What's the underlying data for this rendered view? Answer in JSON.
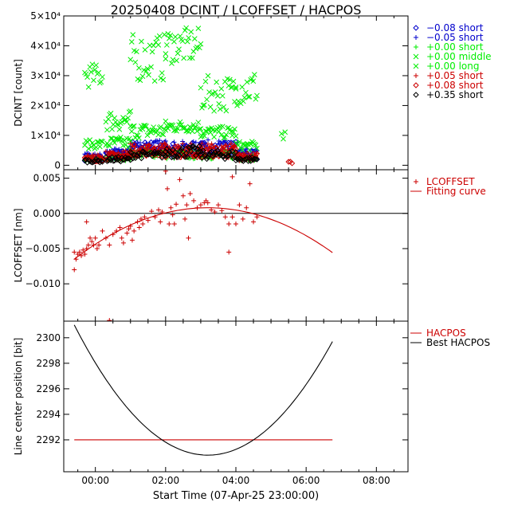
{
  "title": "20250408 DCINT / LCOFFSET / HACPOS",
  "x_axis": {
    "label": "Start Time (07-Apr-25 23:00:00)",
    "range": [
      -0.9,
      8.9
    ],
    "ticks": [
      {
        "v": 0,
        "label": "00:00"
      },
      {
        "v": 2,
        "label": "02:00"
      },
      {
        "v": 4,
        "label": "04:00"
      },
      {
        "v": 6,
        "label": "06:00"
      },
      {
        "v": 8,
        "label": "08:00"
      }
    ]
  },
  "chart_data": [
    {
      "type": "scatter",
      "ylabel": "DCINT [count]",
      "ylim": [
        -1500,
        50000
      ],
      "yticks": [
        {
          "v": 0,
          "label": "0"
        },
        {
          "v": 10000,
          "label": "1×10⁴"
        },
        {
          "v": 20000,
          "label": "2×10⁴"
        },
        {
          "v": 30000,
          "label": "3×10⁴"
        },
        {
          "v": 40000,
          "label": "4×10⁴"
        },
        {
          "v": 50000,
          "label": "5×10⁴"
        }
      ],
      "legend_placement": "right",
      "series": [
        {
          "name": "−0.08 short",
          "marker": "diamond",
          "color": "#0000cc",
          "segments": [
            [
              -0.3,
              0.2,
              2500,
              1000
            ],
            [
              0.3,
              1.0,
              3500,
              1500
            ],
            [
              1.0,
              2.0,
              6000,
              2000
            ],
            [
              2.0,
              3.0,
              5000,
              2500
            ],
            [
              3.0,
              4.0,
              5500,
              2500
            ],
            [
              4.0,
              4.6,
              3500,
              1500
            ]
          ]
        },
        {
          "name": "−0.05 short",
          "marker": "plus",
          "color": "#0000cc",
          "segments": [
            [
              -0.3,
              0.2,
              3000,
              1000
            ],
            [
              0.3,
              1.0,
              4000,
              1500
            ],
            [
              1.0,
              2.0,
              6500,
              2000
            ],
            [
              2.0,
              3.0,
              5500,
              2500
            ],
            [
              3.0,
              4.0,
              6000,
              2500
            ],
            [
              4.0,
              4.6,
              4000,
              1500
            ]
          ]
        },
        {
          "name": "+0.00 short",
          "marker": "plus",
          "color": "#00ee00",
          "segments": [
            [
              -0.3,
              0.2,
              2000,
              800
            ],
            [
              0.3,
              1.0,
              2500,
              1000
            ],
            [
              1.0,
              2.0,
              4000,
              1500
            ],
            [
              2.0,
              3.0,
              3500,
              1500
            ],
            [
              3.0,
              4.0,
              3500,
              1500
            ],
            [
              4.0,
              4.6,
              2500,
              1000
            ]
          ]
        },
        {
          "name": "+0.00 middle",
          "marker": "x",
          "color": "#00ee00",
          "segments": [
            [
              -0.3,
              0.2,
              7000,
              1500
            ],
            [
              0.3,
              1.0,
              7500,
              2000
            ],
            [
              1.0,
              2.0,
              11500,
              2500
            ],
            [
              2.0,
              3.0,
              13000,
              2000
            ],
            [
              3.0,
              4.0,
              11000,
              2000
            ],
            [
              4.0,
              4.6,
              6500,
              1500
            ]
          ]
        },
        {
          "name": "+0.00 long",
          "marker": "x",
          "color": "#00ee00",
          "segments": [
            [
              -0.3,
              0.2,
              30000,
              4000
            ],
            [
              0.3,
              1.0,
              15000,
              3500
            ],
            [
              1.0,
              2.0,
              36000,
              8000
            ],
            [
              2.0,
              3.0,
              40000,
              6000
            ],
            [
              3.0,
              4.0,
              24000,
              6000
            ],
            [
              4.0,
              4.6,
              26000,
              6000
            ],
            [
              5.3,
              5.4,
              10000,
              6000
            ]
          ]
        },
        {
          "name": "+0.05 short",
          "marker": "plus",
          "color": "#cc0000",
          "segments": [
            [
              -0.3,
              0.2,
              2500,
              1000
            ],
            [
              0.3,
              1.0,
              3500,
              1500
            ],
            [
              1.0,
              2.0,
              5500,
              2000
            ],
            [
              2.0,
              3.0,
              5000,
              2500
            ],
            [
              3.0,
              4.0,
              5000,
              2500
            ],
            [
              4.0,
              4.6,
              3000,
              1500
            ]
          ]
        },
        {
          "name": "+0.08 short",
          "marker": "diamond",
          "color": "#cc0000",
          "segments": [
            [
              -0.3,
              0.2,
              2000,
              800
            ],
            [
              0.3,
              1.0,
              3000,
              1200
            ],
            [
              1.0,
              2.0,
              5000,
              2000
            ],
            [
              2.0,
              3.0,
              4500,
              2000
            ],
            [
              3.0,
              4.0,
              4500,
              2000
            ],
            [
              4.0,
              4.6,
              3000,
              1200
            ],
            [
              5.5,
              5.6,
              1000,
              400
            ]
          ]
        },
        {
          "name": "+0.35 short",
          "marker": "diamond",
          "color": "#000000",
          "segments": [
            [
              -0.3,
              0.2,
              1500,
              600
            ],
            [
              0.3,
              1.0,
              2000,
              800
            ],
            [
              1.0,
              2.0,
              3500,
              1200
            ],
            [
              2.0,
              3.0,
              4500,
              2000
            ],
            [
              3.0,
              4.0,
              3500,
              1500
            ],
            [
              4.0,
              4.6,
              2000,
              800
            ]
          ]
        }
      ]
    },
    {
      "type": "scatter",
      "ylabel": "LCOFFSET [nm]",
      "ylim": [
        -0.0153,
        0.0062
      ],
      "yticks": [
        {
          "v": 0.005,
          "label": "0.005"
        },
        {
          "v": 0,
          "label": "0.000"
        },
        {
          "v": -0.005,
          "label": "−0.005"
        },
        {
          "v": -0.01,
          "label": "−0.010"
        }
      ],
      "zero_line": true,
      "legend_placement": "right",
      "series": [
        {
          "name": "LCOFFSET",
          "marker": "plus",
          "color": "#cc0000",
          "points": [
            [
              -0.6,
              -0.008
            ],
            [
              -0.6,
              -0.0055
            ],
            [
              -0.55,
              -0.0065
            ],
            [
              -0.5,
              -0.0058
            ],
            [
              -0.45,
              -0.0055
            ],
            [
              -0.4,
              -0.006
            ],
            [
              -0.35,
              -0.0052
            ],
            [
              -0.3,
              -0.0058
            ],
            [
              -0.25,
              -0.005
            ],
            [
              -0.2,
              -0.0045
            ],
            [
              -0.15,
              -0.0035
            ],
            [
              -0.1,
              -0.004
            ],
            [
              -0.05,
              -0.0045
            ],
            [
              0.0,
              -0.0035
            ],
            [
              0.05,
              -0.005
            ],
            [
              0.1,
              -0.0045
            ],
            [
              -0.25,
              -0.0012
            ],
            [
              0.2,
              -0.0025
            ],
            [
              0.3,
              -0.0035
            ],
            [
              0.4,
              -0.0045
            ],
            [
              0.4,
              -0.0152
            ],
            [
              0.5,
              -0.003
            ],
            [
              0.6,
              -0.0025
            ],
            [
              0.7,
              -0.002
            ],
            [
              0.75,
              -0.0035
            ],
            [
              0.8,
              -0.0042
            ],
            [
              0.9,
              -0.0028
            ],
            [
              0.95,
              -0.0022
            ],
            [
              1.0,
              -0.0018
            ],
            [
              1.05,
              -0.0038
            ],
            [
              1.1,
              -0.0025
            ],
            [
              1.2,
              -0.0012
            ],
            [
              1.25,
              -0.002
            ],
            [
              1.3,
              -0.0008
            ],
            [
              1.35,
              -0.0015
            ],
            [
              1.4,
              -0.0005
            ],
            [
              1.5,
              -0.001
            ],
            [
              1.6,
              0.0003
            ],
            [
              1.7,
              -0.0005
            ],
            [
              1.8,
              0.0005
            ],
            [
              1.85,
              -0.0012
            ],
            [
              1.9,
              0.0002
            ],
            [
              2.0,
              0.006
            ],
            [
              2.05,
              0.0035
            ],
            [
              2.1,
              -0.0015
            ],
            [
              2.15,
              0.0008
            ],
            [
              2.2,
              -0.0002
            ],
            [
              2.25,
              -0.0015
            ],
            [
              2.3,
              0.0013
            ],
            [
              2.4,
              0.0048
            ],
            [
              2.5,
              0.0025
            ],
            [
              2.55,
              -0.0008
            ],
            [
              2.6,
              0.0012
            ],
            [
              2.65,
              -0.0035
            ],
            [
              2.7,
              0.0028
            ],
            [
              2.8,
              0.0018
            ],
            [
              2.9,
              0.0008
            ],
            [
              3.0,
              0.0012
            ],
            [
              3.1,
              0.0015
            ],
            [
              3.15,
              0.0018
            ],
            [
              3.2,
              0.0015
            ],
            [
              3.3,
              0.0005
            ],
            [
              3.4,
              0.0002
            ],
            [
              3.5,
              0.0012
            ],
            [
              3.6,
              0.0004
            ],
            [
              3.7,
              -0.0005
            ],
            [
              3.8,
              -0.0015
            ],
            [
              3.9,
              -0.0005
            ],
            [
              4.0,
              -0.0015
            ],
            [
              4.1,
              0.0012
            ],
            [
              4.2,
              -0.0008
            ],
            [
              4.3,
              0.0008
            ],
            [
              4.4,
              0.0042
            ],
            [
              4.5,
              -0.0012
            ],
            [
              4.6,
              -0.0005
            ],
            [
              3.9,
              0.0052
            ],
            [
              3.8,
              -0.0055
            ]
          ]
        },
        {
          "name": "Fitting curve",
          "marker": "line",
          "color": "#cc0000",
          "curve": {
            "x_min": -0.6,
            "x_max": 6.75,
            "vertex_x": 3.2,
            "vertex_y": 0.0008,
            "y_at_x_min": -0.0065
          }
        }
      ]
    },
    {
      "type": "line",
      "ylabel": "Line center position [bit]",
      "ylim": [
        2289.5,
        2301.3
      ],
      "yticks": [
        {
          "v": 2292,
          "label": "2292"
        },
        {
          "v": 2294,
          "label": "2294"
        },
        {
          "v": 2296,
          "label": "2296"
        },
        {
          "v": 2298,
          "label": "2298"
        },
        {
          "v": 2300,
          "label": "2300"
        }
      ],
      "legend_placement": "right",
      "series": [
        {
          "name": "HACPOS",
          "color": "#cc0000",
          "constant": {
            "x_min": -0.6,
            "x_max": 6.75,
            "y": 2292
          }
        },
        {
          "name": "Best HACPOS",
          "color": "#000000",
          "curve": {
            "x_min": -0.6,
            "x_max": 6.75,
            "vertex_x": 3.2,
            "vertex_y": 2290.8,
            "y_at_x_min": 2301.0
          }
        }
      ]
    }
  ]
}
